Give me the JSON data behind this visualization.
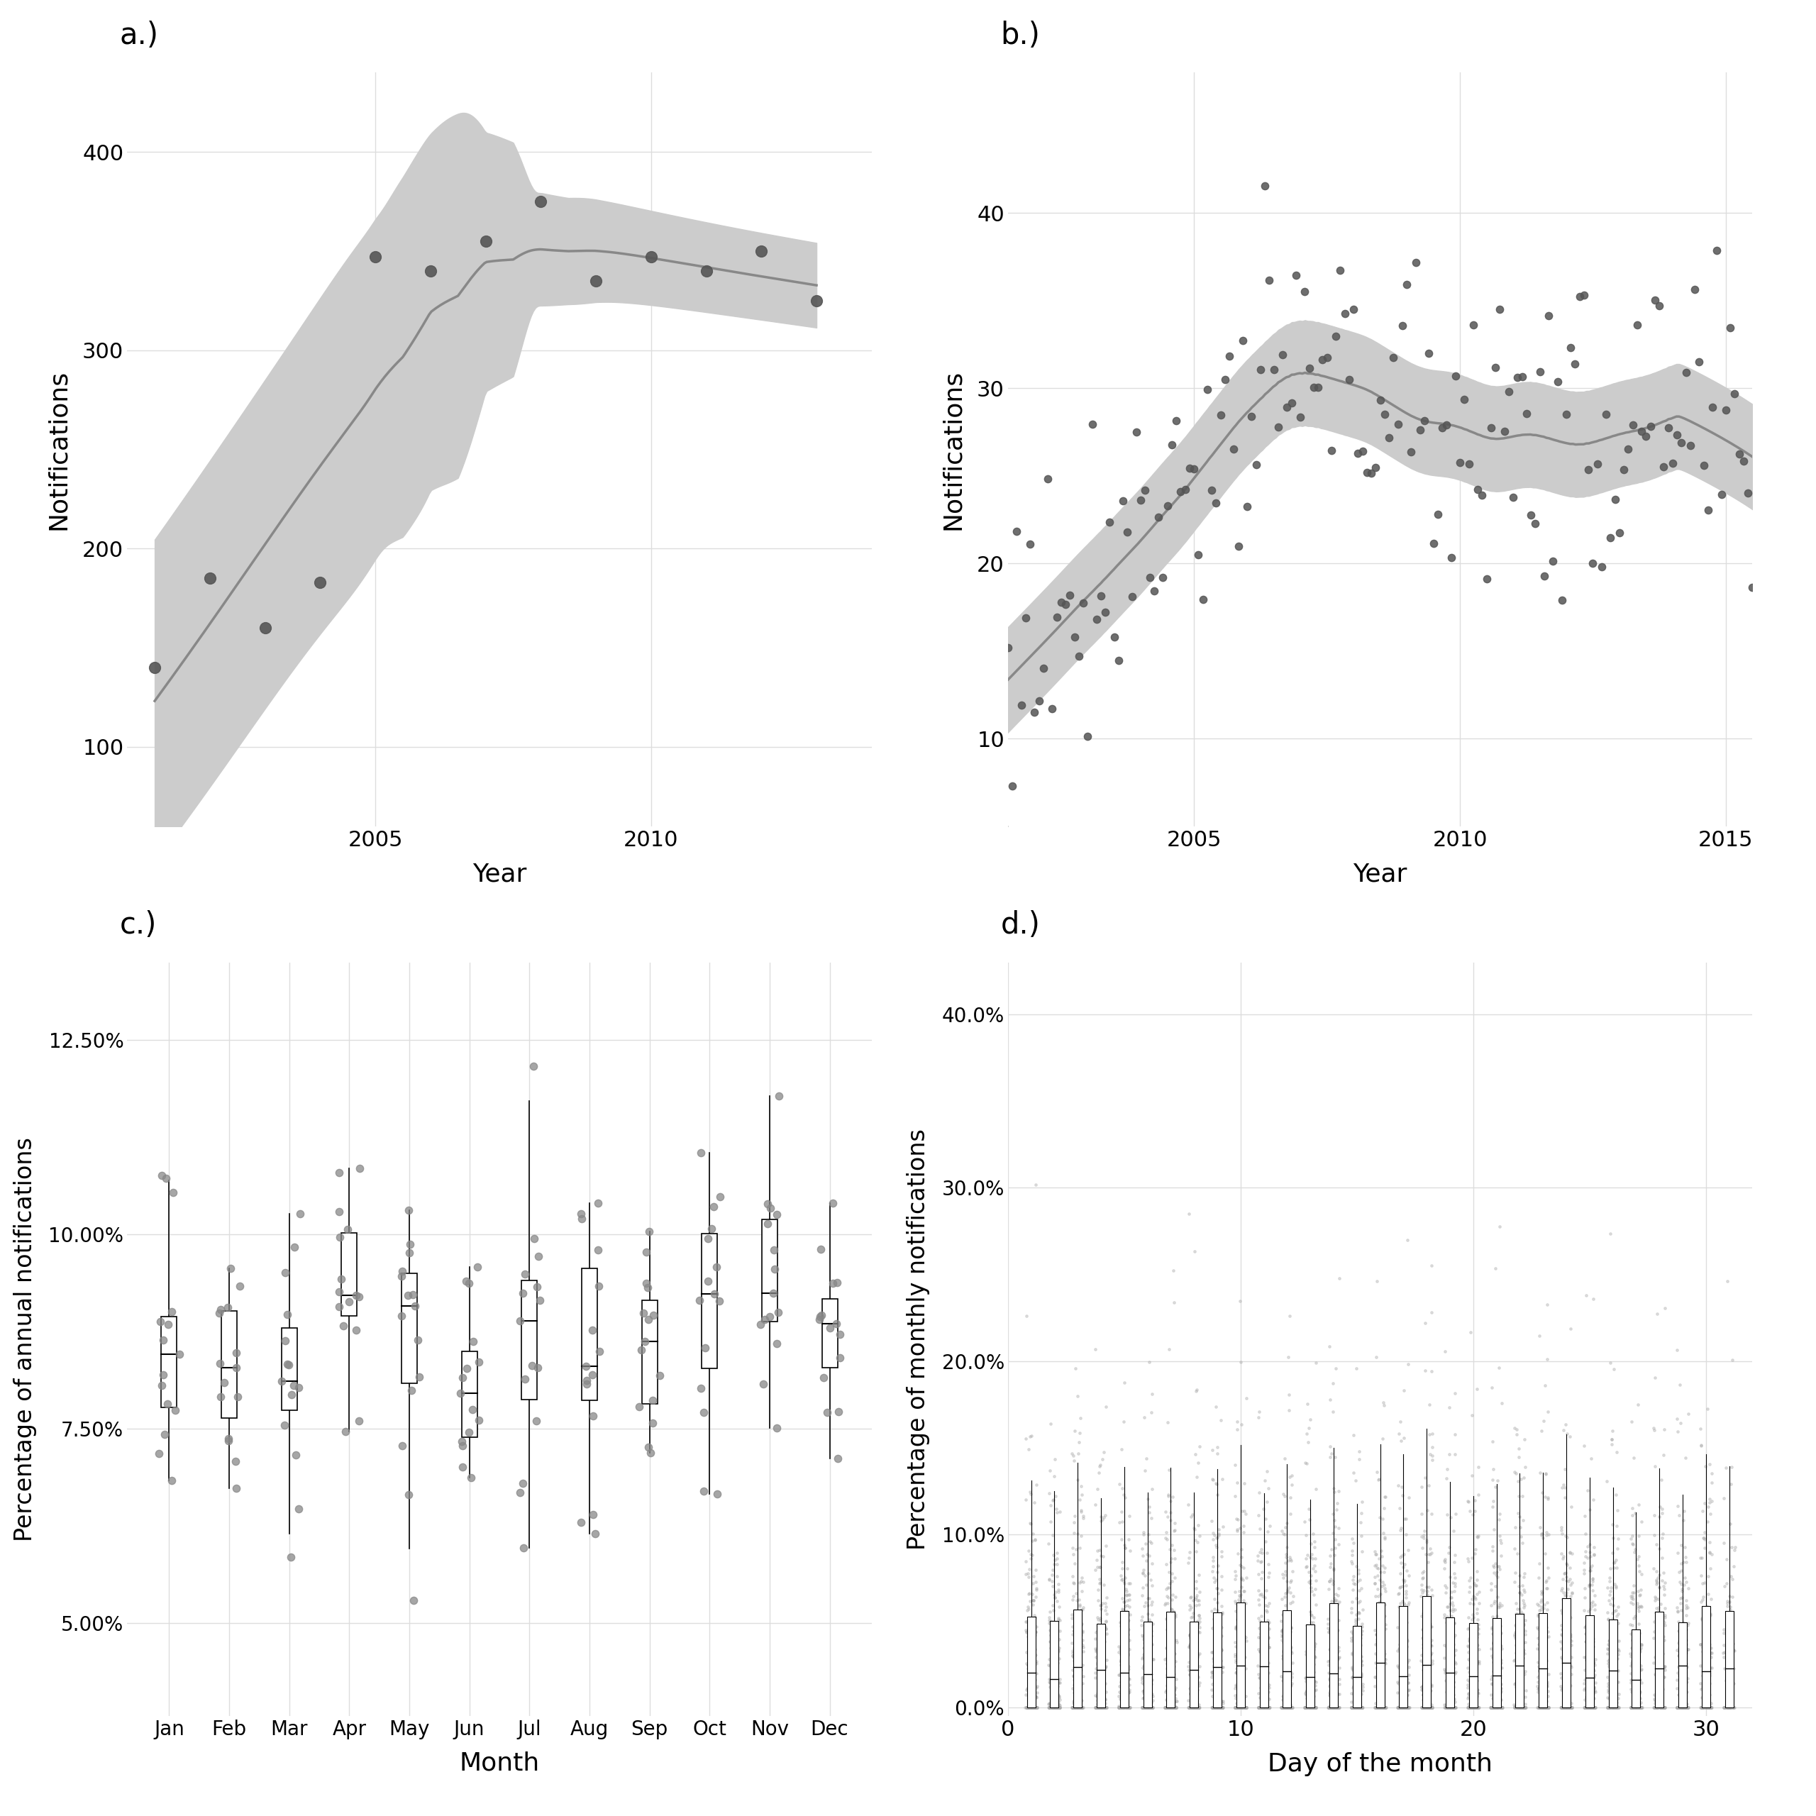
{
  "panel_a": {
    "title": "a.)",
    "xlabel": "Year",
    "ylabel": "Notifications",
    "years": [
      2001,
      2002,
      2003,
      2004,
      2005,
      2006,
      2007,
      2008,
      2009,
      2010,
      2011,
      2012,
      2013
    ],
    "counts": [
      140,
      185,
      160,
      183,
      347,
      340,
      355,
      375,
      335,
      347,
      340,
      350,
      325
    ],
    "ylim": [
      60,
      440
    ],
    "xlim": [
      2000.5,
      2014
    ],
    "yticks": [
      100,
      200,
      300,
      400
    ]
  },
  "panel_b": {
    "title": "b.)",
    "xlabel": "Year",
    "ylabel": "Notifications",
    "ylim": [
      5,
      48
    ],
    "xlim": [
      2001.5,
      2015.5
    ],
    "yticks": [
      10,
      20,
      30,
      40
    ]
  },
  "panel_c": {
    "title": "c.)",
    "xlabel": "Month",
    "ylabel": "Percentage of annual notifications",
    "months": [
      "Jan",
      "Feb",
      "Mar",
      "Apr",
      "May",
      "Jun",
      "Jul",
      "Aug",
      "Sep",
      "Oct",
      "Nov",
      "Dec"
    ],
    "ylim": [
      0.038,
      0.135
    ],
    "yticks": [
      0.05,
      0.075,
      0.1,
      0.125
    ]
  },
  "panel_d": {
    "title": "d.)",
    "xlabel": "Day of the month",
    "ylabel": "Percentage of monthly notifications",
    "ylim": [
      -0.005,
      0.43
    ],
    "yticks": [
      0.0,
      0.1,
      0.2,
      0.3,
      0.4
    ]
  },
  "dot_color": "#555555",
  "line_color": "#888888",
  "shade_color": "#cccccc",
  "background_color": "#ffffff",
  "grid_color": "#dddddd"
}
